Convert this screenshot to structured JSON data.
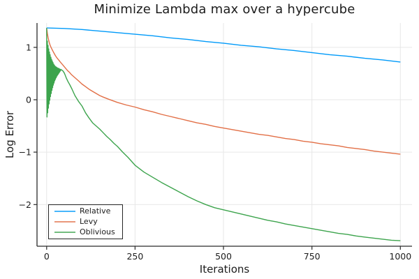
{
  "chart": {
    "title": "Minimize Lambda max over a hypercube",
    "xlabel": "Iterations",
    "ylabel": "Log Error"
  },
  "colors": {
    "relative": "#009af9",
    "levy": "#e26f46",
    "oblivious": "#3da44d",
    "grid": "#e7e7e7",
    "axis": "#2a2a2a",
    "text": "#1c1c1c"
  },
  "chart_data": {
    "type": "line",
    "title": "Minimize Lambda max over a hypercube",
    "xlabel": "Iterations",
    "ylabel": "Log Error",
    "grid": true,
    "legend_position": "bottom-left",
    "xlim": [
      -27.2,
      1033
    ],
    "ylim": [
      -2.795,
      1.464
    ],
    "x_ticks": [
      {
        "value": 0,
        "label": "0"
      },
      {
        "value": 250,
        "label": "250"
      },
      {
        "value": 500,
        "label": "500"
      },
      {
        "value": 750,
        "label": "750"
      },
      {
        "value": 1000,
        "label": "1000"
      }
    ],
    "y_ticks": [
      {
        "value": 1,
        "label": "1"
      },
      {
        "value": 0,
        "label": "0"
      },
      {
        "value": -1,
        "label": "−1"
      },
      {
        "value": -2,
        "label": "−2"
      }
    ],
    "series": [
      {
        "name": "Relative",
        "color": "#009af9",
        "points": [
          [
            0,
            1.37
          ],
          [
            50,
            1.36
          ],
          [
            100,
            1.34
          ],
          [
            150,
            1.31
          ],
          [
            200,
            1.28
          ],
          [
            250,
            1.25
          ],
          [
            300,
            1.22
          ],
          [
            350,
            1.18
          ],
          [
            400,
            1.15
          ],
          [
            450,
            1.11
          ],
          [
            500,
            1.08
          ],
          [
            550,
            1.04
          ],
          [
            600,
            1.01
          ],
          [
            650,
            0.97
          ],
          [
            700,
            0.94
          ],
          [
            750,
            0.9
          ],
          [
            800,
            0.86
          ],
          [
            850,
            0.83
          ],
          [
            900,
            0.79
          ],
          [
            950,
            0.76
          ],
          [
            1000,
            0.72
          ]
        ]
      },
      {
        "name": "Levy",
        "color": "#e26f46",
        "points": [
          [
            0,
            1.37
          ],
          [
            2,
            1.27
          ],
          [
            4,
            1.19
          ],
          [
            6,
            1.13
          ],
          [
            8,
            1.08
          ],
          [
            10,
            1.04
          ],
          [
            13,
            0.99
          ],
          [
            16,
            0.95
          ],
          [
            20,
            0.9
          ],
          [
            25,
            0.84
          ],
          [
            30,
            0.79
          ],
          [
            35,
            0.75
          ],
          [
            40,
            0.71
          ],
          [
            45,
            0.67
          ],
          [
            50,
            0.63
          ],
          [
            55,
            0.59
          ],
          [
            60,
            0.55
          ],
          [
            65,
            0.52
          ],
          [
            70,
            0.48
          ],
          [
            80,
            0.42
          ],
          [
            90,
            0.36
          ],
          [
            100,
            0.3
          ],
          [
            110,
            0.25
          ],
          [
            120,
            0.2
          ],
          [
            130,
            0.16
          ],
          [
            140,
            0.12
          ],
          [
            150,
            0.08
          ],
          [
            160,
            0.05
          ],
          [
            175,
            0.01
          ],
          [
            200,
            -0.05
          ],
          [
            225,
            -0.1
          ],
          [
            250,
            -0.14
          ],
          [
            275,
            -0.19
          ],
          [
            300,
            -0.23
          ],
          [
            325,
            -0.28
          ],
          [
            350,
            -0.32
          ],
          [
            375,
            -0.36
          ],
          [
            400,
            -0.4
          ],
          [
            425,
            -0.44
          ],
          [
            450,
            -0.47
          ],
          [
            475,
            -0.51
          ],
          [
            500,
            -0.54
          ],
          [
            525,
            -0.57
          ],
          [
            550,
            -0.6
          ],
          [
            575,
            -0.63
          ],
          [
            600,
            -0.66
          ],
          [
            625,
            -0.68
          ],
          [
            650,
            -0.71
          ],
          [
            675,
            -0.74
          ],
          [
            700,
            -0.76
          ],
          [
            725,
            -0.79
          ],
          [
            750,
            -0.81
          ],
          [
            775,
            -0.84
          ],
          [
            800,
            -0.86
          ],
          [
            825,
            -0.88
          ],
          [
            850,
            -0.91
          ],
          [
            875,
            -0.93
          ],
          [
            900,
            -0.95
          ],
          [
            925,
            -0.98
          ],
          [
            950,
            -1.0
          ],
          [
            975,
            -1.02
          ],
          [
            1000,
            -1.04
          ]
        ]
      },
      {
        "name": "Oblivious",
        "color": "#3da44d",
        "points": [
          [
            0,
            1.37
          ],
          [
            1,
            -0.33
          ],
          [
            2,
            1.12
          ],
          [
            3,
            -0.25
          ],
          [
            4,
            1.04
          ],
          [
            5,
            -0.16
          ],
          [
            6,
            0.97
          ],
          [
            7,
            -0.08
          ],
          [
            8,
            0.91
          ],
          [
            9,
            -0.01
          ],
          [
            10,
            0.86
          ],
          [
            11,
            0.06
          ],
          [
            12,
            0.81
          ],
          [
            13,
            0.12
          ],
          [
            14,
            0.77
          ],
          [
            15,
            0.18
          ],
          [
            16,
            0.74
          ],
          [
            17,
            0.23
          ],
          [
            18,
            0.71
          ],
          [
            19,
            0.28
          ],
          [
            20,
            0.68
          ],
          [
            21,
            0.32
          ],
          [
            22,
            0.66
          ],
          [
            23,
            0.36
          ],
          [
            24,
            0.64
          ],
          [
            25,
            0.39
          ],
          [
            26,
            0.63
          ],
          [
            27,
            0.42
          ],
          [
            28,
            0.62
          ],
          [
            29,
            0.45
          ],
          [
            30,
            0.61
          ],
          [
            31,
            0.47
          ],
          [
            32,
            0.6
          ],
          [
            33,
            0.49
          ],
          [
            34,
            0.6
          ],
          [
            35,
            0.51
          ],
          [
            36,
            0.59
          ],
          [
            37,
            0.53
          ],
          [
            38,
            0.58
          ],
          [
            39,
            0.55
          ],
          [
            40,
            0.58
          ],
          [
            42,
            0.57
          ],
          [
            44,
            0.56
          ],
          [
            46,
            0.55
          ],
          [
            48,
            0.53
          ],
          [
            50,
            0.51
          ],
          [
            53,
            0.46
          ],
          [
            56,
            0.41
          ],
          [
            60,
            0.35
          ],
          [
            66,
            0.28
          ],
          [
            72,
            0.2
          ],
          [
            80,
            0.08
          ],
          [
            90,
            -0.03
          ],
          [
            100,
            -0.12
          ],
          [
            110,
            -0.25
          ],
          [
            120,
            -0.35
          ],
          [
            130,
            -0.44
          ],
          [
            140,
            -0.5
          ],
          [
            150,
            -0.56
          ],
          [
            160,
            -0.63
          ],
          [
            170,
            -0.7
          ],
          [
            180,
            -0.76
          ],
          [
            190,
            -0.83
          ],
          [
            200,
            -0.89
          ],
          [
            215,
            -1.0
          ],
          [
            230,
            -1.1
          ],
          [
            250,
            -1.25
          ],
          [
            275,
            -1.38
          ],
          [
            300,
            -1.48
          ],
          [
            325,
            -1.58
          ],
          [
            350,
            -1.67
          ],
          [
            375,
            -1.76
          ],
          [
            400,
            -1.85
          ],
          [
            425,
            -1.93
          ],
          [
            450,
            -2.0
          ],
          [
            475,
            -2.06
          ],
          [
            500,
            -2.1
          ],
          [
            525,
            -2.14
          ],
          [
            550,
            -2.18
          ],
          [
            575,
            -2.22
          ],
          [
            600,
            -2.26
          ],
          [
            625,
            -2.3
          ],
          [
            650,
            -2.33
          ],
          [
            675,
            -2.37
          ],
          [
            700,
            -2.4
          ],
          [
            725,
            -2.43
          ],
          [
            750,
            -2.46
          ],
          [
            775,
            -2.49
          ],
          [
            800,
            -2.52
          ],
          [
            825,
            -2.55
          ],
          [
            850,
            -2.57
          ],
          [
            875,
            -2.6
          ],
          [
            900,
            -2.62
          ],
          [
            925,
            -2.64
          ],
          [
            950,
            -2.66
          ],
          [
            975,
            -2.68
          ],
          [
            1000,
            -2.69
          ]
        ]
      }
    ]
  }
}
